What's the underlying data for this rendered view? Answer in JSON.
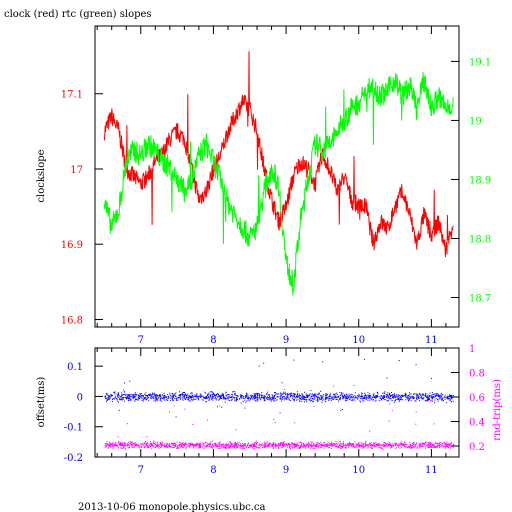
{
  "title": "clock (red) rtc (green) slopes",
  "footer": "2013-10-06  monopole.physics.ubc.ca",
  "colors": {
    "red": "#ff0000",
    "green": "#00ff00",
    "blue": "#0000ff",
    "magenta": "#ff00ff",
    "black": "#000000"
  },
  "chart_data": [
    {
      "type": "line",
      "title": "clock (red) rtc (green) slopes",
      "xlim": [
        6.37,
        11.38
      ],
      "xticks": [
        7,
        8,
        9,
        10,
        11
      ],
      "ylabel": "clockslope",
      "ylim": [
        16.79,
        17.19
      ],
      "yticks": [
        16.8,
        16.9,
        17,
        17.1
      ],
      "ytick_labels": [
        "16.8",
        "16.9",
        "17",
        "17.1"
      ],
      "y2lim": [
        18.65,
        19.16
      ],
      "y2ticks": [
        18.7,
        18.8,
        18.9,
        19,
        19.1
      ],
      "y2tick_labels": [
        "18.7",
        "18.8",
        "18.9",
        "19",
        "19.1"
      ],
      "grid": false,
      "series": [
        {
          "name": "clock",
          "color": "red",
          "axis": "left",
          "x": [
            6.5,
            6.6,
            6.7,
            6.8,
            6.9,
            7.0,
            7.1,
            7.2,
            7.3,
            7.4,
            7.5,
            7.6,
            7.7,
            7.8,
            7.9,
            8.0,
            8.1,
            8.2,
            8.3,
            8.4,
            8.5,
            8.6,
            8.7,
            8.8,
            8.9,
            9.0,
            9.1,
            9.2,
            9.3,
            9.4,
            9.5,
            9.6,
            9.7,
            9.8,
            9.9,
            10.0,
            10.1,
            10.2,
            10.3,
            10.4,
            10.5,
            10.6,
            10.7,
            10.8,
            10.9,
            11.0,
            11.1,
            11.2,
            11.3
          ],
          "y": [
            17.05,
            17.07,
            17.05,
            17.0,
            16.99,
            16.98,
            16.99,
            17.01,
            17.02,
            17.04,
            17.05,
            17.04,
            17.0,
            16.96,
            16.97,
            17.0,
            17.02,
            17.05,
            17.07,
            17.09,
            17.08,
            17.05,
            17.0,
            16.96,
            16.93,
            16.95,
            16.99,
            17.01,
            17.0,
            16.98,
            17.02,
            17.0,
            16.97,
            16.99,
            16.96,
            16.95,
            16.95,
            16.9,
            16.93,
            16.92,
            16.95,
            16.97,
            16.94,
            16.9,
            16.94,
            16.91,
            16.93,
            16.89,
            16.93
          ]
        },
        {
          "name": "rtc",
          "color": "green",
          "axis": "right",
          "x": [
            6.5,
            6.6,
            6.7,
            6.8,
            6.9,
            7.0,
            7.1,
            7.2,
            7.3,
            7.4,
            7.5,
            7.6,
            7.7,
            7.8,
            7.9,
            8.0,
            8.1,
            8.2,
            8.3,
            8.4,
            8.5,
            8.6,
            8.7,
            8.8,
            8.9,
            9.0,
            9.1,
            9.2,
            9.3,
            9.4,
            9.5,
            9.6,
            9.7,
            9.8,
            9.9,
            10.0,
            10.1,
            10.2,
            10.3,
            10.4,
            10.5,
            10.6,
            10.7,
            10.8,
            10.9,
            11.0,
            11.1,
            11.2,
            11.3
          ],
          "y": [
            18.86,
            18.82,
            18.85,
            18.93,
            18.95,
            18.94,
            18.96,
            18.95,
            18.93,
            18.92,
            18.9,
            18.88,
            18.9,
            18.94,
            18.96,
            18.93,
            18.9,
            18.86,
            18.84,
            18.82,
            18.8,
            18.82,
            18.88,
            18.92,
            18.89,
            18.76,
            18.72,
            18.83,
            18.9,
            18.96,
            18.95,
            18.96,
            18.98,
            19.0,
            19.02,
            19.03,
            19.05,
            19.06,
            19.04,
            19.05,
            19.07,
            19.04,
            19.06,
            19.02,
            19.07,
            19.02,
            19.04,
            19.02,
            19.03
          ]
        }
      ]
    },
    {
      "type": "scatter",
      "xlim": [
        6.37,
        11.38
      ],
      "xticks": [
        7,
        8,
        9,
        10,
        11
      ],
      "ylabel": "offset(ms)",
      "ylim": [
        -0.2,
        0.16
      ],
      "yticks": [
        -0.2,
        -0.1,
        0,
        0.1
      ],
      "ytick_labels": [
        "-0.2",
        "-0.1",
        "0",
        "0.1"
      ],
      "y2label": "rnd-trip(ms)",
      "y2lim": [
        0.11,
        1.0
      ],
      "y2ticks": [
        0.2,
        0.4,
        0.6,
        0.8,
        1.0
      ],
      "y2tick_labels": [
        "0.2",
        "0.4",
        "0.6",
        "0.8",
        "1"
      ],
      "grid": false,
      "series": [
        {
          "name": "offset",
          "color": "blue",
          "axis": "left",
          "x_range": [
            6.5,
            11.3
          ],
          "center": 0.0,
          "spread": 0.014,
          "outlier_range": [
            -0.07,
            0.13
          ]
        },
        {
          "name": "rnd-trip",
          "color": "magenta",
          "axis": "right",
          "x_range": [
            6.5,
            11.3
          ],
          "center": 0.21,
          "spread": 0.025,
          "outlier_range": [
            0.27,
            0.7
          ]
        }
      ]
    }
  ]
}
